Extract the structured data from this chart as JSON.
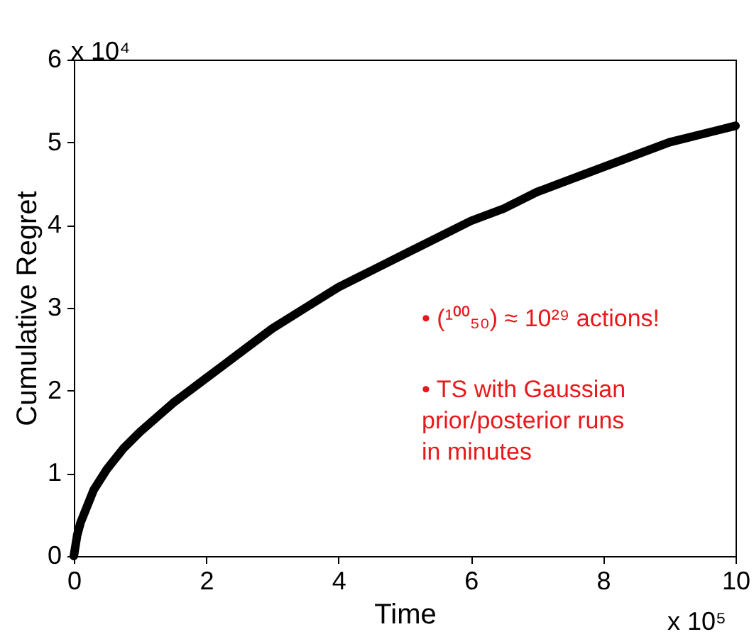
{
  "chart_data": {
    "type": "line",
    "xlabel": "Time",
    "ylabel": "Cumulative Regret",
    "x": [
      0,
      0.05,
      0.1,
      0.2,
      0.3,
      0.5,
      0.75,
      1,
      1.5,
      2,
      2.5,
      3,
      3.5,
      4,
      4.5,
      5,
      5.5,
      6,
      6.5,
      7,
      7.5,
      8,
      8.5,
      9,
      9.5,
      10
    ],
    "series": [
      {
        "color": "#000000",
        "values": [
          0,
          0.25,
          0.4,
          0.6,
          0.8,
          1.05,
          1.3,
          1.5,
          1.85,
          2.15,
          2.45,
          2.75,
          3.0,
          3.25,
          3.45,
          3.65,
          3.85,
          4.05,
          4.2,
          4.4,
          4.55,
          4.7,
          4.85,
          5.0,
          5.1,
          5.2
        ]
      }
    ],
    "xlim": [
      0,
      10
    ],
    "ylim": [
      0,
      6
    ],
    "xticks": [
      0,
      2,
      4,
      6,
      8,
      10
    ],
    "yticks": [
      0,
      1,
      2,
      3,
      4,
      5,
      6
    ],
    "annotations": [
      "x 10⁴",
      "x 10⁵",
      "• (¹⁰⁰₅₀) ≈ 10²⁹ actions!",
      "• TS with Gaussian prior/posterior runs in minutes"
    ],
    "grid": false,
    "marker": "none",
    "line_style": "solid"
  }
}
